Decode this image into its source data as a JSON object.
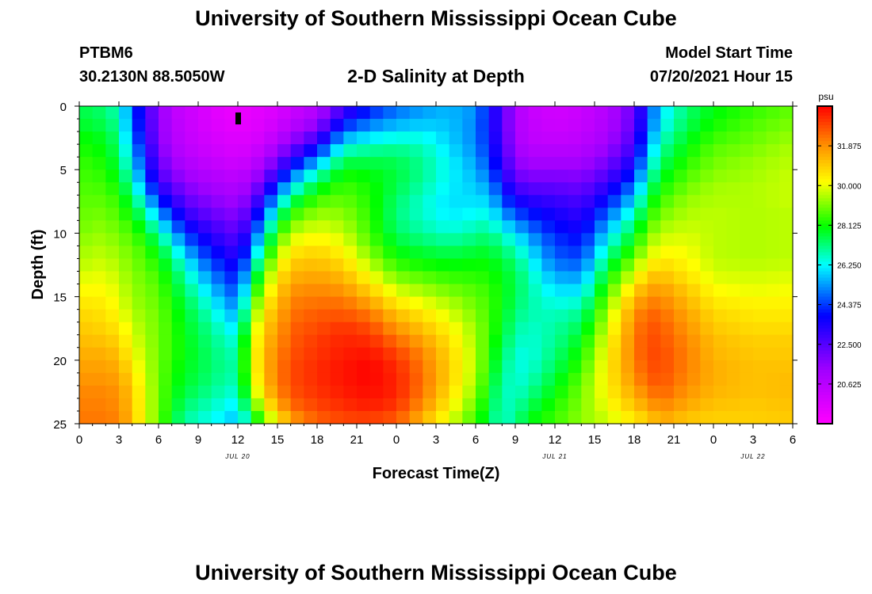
{
  "header": {
    "title_top": "University of Southern Mississippi Ocean Cube",
    "station_id": "PTBM6",
    "station_coords": "30.2130N  88.5050W",
    "plot_title": "2-D Salinity at Depth",
    "model_start_label": "Model Start Time",
    "model_start_value": "07/20/2021 Hour 15",
    "title_bottom": "University of Southern Mississippi Ocean Cube"
  },
  "chart_data": {
    "type": "heatmap",
    "title": "2-D Salinity at Depth",
    "xlabel": "Forecast Time(Z)",
    "ylabel": "Depth (ft)",
    "x_ticks": [
      "0",
      "3",
      "6",
      "9",
      "12",
      "15",
      "18",
      "21",
      "0",
      "3",
      "6",
      "9",
      "12",
      "15",
      "18",
      "21",
      "0",
      "3",
      "6"
    ],
    "x_range_hours": [
      0,
      54
    ],
    "date_labels": [
      {
        "text": "JUL 20",
        "hour": 12
      },
      {
        "text": "JUL 21",
        "hour": 36
      },
      {
        "text": "JUL 22",
        "hour": 51
      }
    ],
    "y_ticks": [
      0,
      5,
      10,
      15,
      20,
      25
    ],
    "y_range_ft": [
      0,
      25
    ],
    "x_step_hours": 1,
    "y_step_ft": 1,
    "colorbar": {
      "unit": "psu",
      "ticks": [
        "31.875",
        "30.000",
        "28.125",
        "26.250",
        "24.375",
        "22.500",
        "20.625"
      ],
      "range": [
        18.75,
        33.75
      ]
    },
    "marker": {
      "hour": 12,
      "depth_ft": 1
    },
    "profiles": [
      {
        "hour": 0,
        "s": [
          27.4,
          27.6,
          27.8,
          28.1,
          28.3,
          28.5,
          28.6,
          28.7,
          28.8,
          28.9,
          29.0,
          29.2,
          29.4,
          29.6,
          29.9,
          30.2,
          30.5,
          30.8,
          31.0,
          31.2,
          31.4,
          31.6,
          31.8,
          32.0,
          32.1,
          32.2
        ]
      },
      {
        "hour": 2,
        "s": [
          27.1,
          27.3,
          27.5,
          27.8,
          28.0,
          28.2,
          28.4,
          28.6,
          28.8,
          29.0,
          29.2,
          29.4,
          29.6,
          29.8,
          30.0,
          30.2,
          30.4,
          30.6,
          30.8,
          31.1,
          31.4,
          31.6,
          31.8,
          32.0,
          32.1,
          32.2
        ]
      },
      {
        "hour": 3,
        "s": [
          26.6,
          26.7,
          26.9,
          27.1,
          27.3,
          27.5,
          27.8,
          28.1,
          28.4,
          28.6,
          28.8,
          29.0,
          29.2,
          29.4,
          29.6,
          29.8,
          30.0,
          30.2,
          30.5,
          30.8,
          31.1,
          31.4,
          31.6,
          31.8,
          31.9,
          32.0
        ]
      },
      {
        "hour": 4,
        "s": [
          24.8,
          24.8,
          24.9,
          25.2,
          25.6,
          26.0,
          26.5,
          27.0,
          27.5,
          28.0,
          28.5,
          28.8,
          29.0,
          29.1,
          29.2,
          29.3,
          29.4,
          29.6,
          29.8,
          30.0,
          30.2,
          30.5,
          30.8,
          31.0,
          31.1,
          31.2
        ]
      },
      {
        "hour": 5,
        "s": [
          23.0,
          23.0,
          23.1,
          23.3,
          23.7,
          24.1,
          24.6,
          25.3,
          26.2,
          27.0,
          27.6,
          28.1,
          28.5,
          28.7,
          28.9,
          29.0,
          29.1,
          29.2,
          29.3,
          29.4,
          29.5,
          29.6,
          29.7,
          29.8,
          29.8,
          29.8
        ]
      },
      {
        "hour": 6,
        "s": [
          21.6,
          21.6,
          21.7,
          21.8,
          22.0,
          22.3,
          22.7,
          23.4,
          24.3,
          25.4,
          26.4,
          27.3,
          27.9,
          28.3,
          28.6,
          28.8,
          28.9,
          29.0,
          29.0,
          29.0,
          29.0,
          29.0,
          29.0,
          29.0,
          29.0,
          29.0
        ]
      },
      {
        "hour": 7,
        "s": [
          20.6,
          20.6,
          20.7,
          20.8,
          21.0,
          21.4,
          21.9,
          22.6,
          23.4,
          24.3,
          25.2,
          26.1,
          26.9,
          27.4,
          27.8,
          28.0,
          28.2,
          28.3,
          28.4,
          28.4,
          28.4,
          28.3,
          28.2,
          28.1,
          28.0,
          27.8
        ]
      },
      {
        "hour": 8,
        "s": [
          20.2,
          20.2,
          20.3,
          20.4,
          20.6,
          20.9,
          21.3,
          21.8,
          22.4,
          23.1,
          23.9,
          24.8,
          25.7,
          26.4,
          26.9,
          27.3,
          27.6,
          27.8,
          27.9,
          28.0,
          28.0,
          27.9,
          27.8,
          27.6,
          27.3,
          27.0
        ]
      },
      {
        "hour": 9,
        "s": [
          20.0,
          20.0,
          20.0,
          20.1,
          20.3,
          20.6,
          21.0,
          21.5,
          22.0,
          22.6,
          23.3,
          24.0,
          24.7,
          25.4,
          26.0,
          26.5,
          26.9,
          27.2,
          27.4,
          27.5,
          27.6,
          27.6,
          27.5,
          27.3,
          27.0,
          26.7
        ]
      },
      {
        "hour": 10,
        "s": [
          19.6,
          19.6,
          19.7,
          19.9,
          20.1,
          20.4,
          20.8,
          21.2,
          21.7,
          22.2,
          22.8,
          23.4,
          24.0,
          24.6,
          25.2,
          25.8,
          26.3,
          26.7,
          27.0,
          27.2,
          27.3,
          27.3,
          27.2,
          27.0,
          26.7,
          26.4
        ]
      },
      {
        "hour": 11,
        "s": [
          19.4,
          19.4,
          19.5,
          19.7,
          19.9,
          20.2,
          20.6,
          21.0,
          21.4,
          21.9,
          22.4,
          22.9,
          23.5,
          24.0,
          24.5,
          25.0,
          25.5,
          26.0,
          26.4,
          26.7,
          26.9,
          27.0,
          26.9,
          26.7,
          26.4,
          26.1
        ]
      },
      {
        "hour": 12,
        "s": [
          19.3,
          19.3,
          19.4,
          19.6,
          19.8,
          20.1,
          20.5,
          20.9,
          21.3,
          21.7,
          22.1,
          22.6,
          23.0,
          23.5,
          24.0,
          24.5,
          25.0,
          25.5,
          26.0,
          26.5,
          26.8,
          26.9,
          26.8,
          26.5,
          26.1,
          25.7
        ]
      },
      {
        "hour": 13,
        "s": [
          19.4,
          19.4,
          19.5,
          19.7,
          20.0,
          20.4,
          20.9,
          21.5,
          22.1,
          22.8,
          23.5,
          24.2,
          25.0,
          25.8,
          26.6,
          27.4,
          28.1,
          28.7,
          29.2,
          29.5,
          29.7,
          29.7,
          29.5,
          29.1,
          28.4,
          27.6
        ]
      },
      {
        "hour": 14,
        "s": [
          19.5,
          19.6,
          19.7,
          20.0,
          20.5,
          21.1,
          21.9,
          22.8,
          23.8,
          24.8,
          25.8,
          26.7,
          27.6,
          28.4,
          29.1,
          29.7,
          30.3,
          30.7,
          31.0,
          31.2,
          31.3,
          31.3,
          31.2,
          30.9,
          30.2,
          29.2
        ]
      },
      {
        "hour": 15,
        "s": [
          19.7,
          19.8,
          20.1,
          20.6,
          21.3,
          22.2,
          23.3,
          24.5,
          25.7,
          26.8,
          27.8,
          28.6,
          29.3,
          29.9,
          30.4,
          30.8,
          31.1,
          31.4,
          31.6,
          31.8,
          32.0,
          32.1,
          32.1,
          31.9,
          31.4,
          30.5
        ]
      },
      {
        "hour": 16,
        "s": [
          20.0,
          20.2,
          20.6,
          21.3,
          22.3,
          23.5,
          24.9,
          26.2,
          27.4,
          28.4,
          29.2,
          29.9,
          30.5,
          31.0,
          31.4,
          31.8,
          32.1,
          32.3,
          32.5,
          32.6,
          32.7,
          32.8,
          32.8,
          32.7,
          32.4,
          31.8
        ]
      },
      {
        "hour": 18,
        "s": [
          20.6,
          20.9,
          21.6,
          22.7,
          24.1,
          25.6,
          26.9,
          27.9,
          28.7,
          29.3,
          29.8,
          30.3,
          30.8,
          31.2,
          31.6,
          32.0,
          32.3,
          32.6,
          32.8,
          33.0,
          33.1,
          33.2,
          33.2,
          33.1,
          32.9,
          32.6
        ]
      },
      {
        "hour": 20,
        "s": [
          22.4,
          23.1,
          24.2,
          25.5,
          26.7,
          27.6,
          28.2,
          28.6,
          28.9,
          29.2,
          29.5,
          29.9,
          30.3,
          30.8,
          31.3,
          31.8,
          32.3,
          32.7,
          33.1,
          33.3,
          33.4,
          33.5,
          33.5,
          33.4,
          33.2,
          32.9
        ]
      },
      {
        "hour": 22,
        "s": [
          23.8,
          24.3,
          25.1,
          26.1,
          27.0,
          27.6,
          28.0,
          28.2,
          28.3,
          28.4,
          28.5,
          28.7,
          29.1,
          29.6,
          30.2,
          30.9,
          31.6,
          32.3,
          32.8,
          33.2,
          33.5,
          33.7,
          33.7,
          33.6,
          33.4,
          33.0
        ]
      },
      {
        "hour": 24,
        "s": [
          24.6,
          25.0,
          25.6,
          26.4,
          27.1,
          27.5,
          27.6,
          27.5,
          27.3,
          27.2,
          27.3,
          27.6,
          28.0,
          28.5,
          29.1,
          29.8,
          30.5,
          31.2,
          31.8,
          32.4,
          32.9,
          33.2,
          33.3,
          33.3,
          33.1,
          32.7
        ]
      },
      {
        "hour": 26,
        "s": [
          25.2,
          25.4,
          25.8,
          26.4,
          26.8,
          27.0,
          27.0,
          26.8,
          26.6,
          26.6,
          26.8,
          27.2,
          27.7,
          28.2,
          28.8,
          29.4,
          30.0,
          30.6,
          31.1,
          31.6,
          32.0,
          32.2,
          32.3,
          32.2,
          31.9,
          31.4
        ]
      },
      {
        "hour": 28,
        "s": [
          25.6,
          25.6,
          25.7,
          25.8,
          26.0,
          26.2,
          26.2,
          26.1,
          26.0,
          26.1,
          26.4,
          26.9,
          27.5,
          28.0,
          28.5,
          29.0,
          29.5,
          29.9,
          30.3,
          30.6,
          30.8,
          30.9,
          30.9,
          30.7,
          30.4,
          30.0
        ]
      },
      {
        "hour": 30,
        "s": [
          25.3,
          25.2,
          25.1,
          25.1,
          25.2,
          25.4,
          25.6,
          25.8,
          26.0,
          26.3,
          26.7,
          27.2,
          27.7,
          28.1,
          28.4,
          28.7,
          28.9,
          29.1,
          29.3,
          29.4,
          29.5,
          29.5,
          29.4,
          29.2,
          28.9,
          28.6
        ]
      },
      {
        "hour": 31,
        "s": [
          24.0,
          23.9,
          23.9,
          24.0,
          24.2,
          24.5,
          24.9,
          25.4,
          25.9,
          26.4,
          26.9,
          27.4,
          27.8,
          28.1,
          28.3,
          28.5,
          28.6,
          28.6,
          28.6,
          28.5,
          28.4,
          28.3,
          28.1,
          27.9,
          27.7,
          27.5
        ]
      },
      {
        "hour": 32,
        "s": [
          22.6,
          22.6,
          22.6,
          22.7,
          22.9,
          23.2,
          23.6,
          24.1,
          24.7,
          25.4,
          26.1,
          26.8,
          27.3,
          27.7,
          27.9,
          28.0,
          28.0,
          27.9,
          27.8,
          27.6,
          27.4,
          27.2,
          27.0,
          26.8,
          26.7,
          26.6
        ]
      },
      {
        "hour": 33,
        "s": [
          21.0,
          21.0,
          21.0,
          21.1,
          21.3,
          21.7,
          22.2,
          22.9,
          23.7,
          24.6,
          25.5,
          26.3,
          26.9,
          27.3,
          27.5,
          27.5,
          27.4,
          27.2,
          27.0,
          26.8,
          26.6,
          26.5,
          26.5,
          26.6,
          26.8,
          27.0
        ]
      },
      {
        "hour": 34,
        "s": [
          20.3,
          20.3,
          20.4,
          20.5,
          20.8,
          21.2,
          21.8,
          22.5,
          23.3,
          24.1,
          24.8,
          25.5,
          26.1,
          26.5,
          26.8,
          26.9,
          26.9,
          26.8,
          26.6,
          26.5,
          26.4,
          26.5,
          26.7,
          27.0,
          27.4,
          27.8
        ]
      },
      {
        "hour": 36,
        "s": [
          20.0,
          20.0,
          20.1,
          20.3,
          20.7,
          21.2,
          21.8,
          22.4,
          23.0,
          23.5,
          23.9,
          24.3,
          24.6,
          25.0,
          25.5,
          26.0,
          26.4,
          26.7,
          26.9,
          27.0,
          27.2,
          27.4,
          27.7,
          28.0,
          28.3,
          28.5
        ]
      },
      {
        "hour": 38,
        "s": [
          20.2,
          20.2,
          20.3,
          20.5,
          20.8,
          21.2,
          21.7,
          22.2,
          22.7,
          23.1,
          23.5,
          23.9,
          24.3,
          24.8,
          25.4,
          26.0,
          26.6,
          27.1,
          27.5,
          27.9,
          28.2,
          28.5,
          28.8,
          29.0,
          29.1,
          29.2
        ]
      },
      {
        "hour": 40,
        "s": [
          20.8,
          20.8,
          20.9,
          21.1,
          21.5,
          22.0,
          22.6,
          23.3,
          24.0,
          24.8,
          25.5,
          26.2,
          26.9,
          27.5,
          28.1,
          28.6,
          29.1,
          29.5,
          29.8,
          30.1,
          30.3,
          30.4,
          30.4,
          30.3,
          30.1,
          29.8
        ]
      },
      {
        "hour": 42,
        "s": [
          22.2,
          22.2,
          22.3,
          22.6,
          23.0,
          23.6,
          24.3,
          25.1,
          25.9,
          26.7,
          27.4,
          28.0,
          28.6,
          29.3,
          30.0,
          30.8,
          31.4,
          31.8,
          32.0,
          32.1,
          32.1,
          32.0,
          31.8,
          31.5,
          31.1,
          30.6
        ]
      },
      {
        "hour": 43,
        "s": [
          24.2,
          24.3,
          24.5,
          24.9,
          25.4,
          25.9,
          26.5,
          27.1,
          27.7,
          28.2,
          28.7,
          29.2,
          29.7,
          30.3,
          31.0,
          31.6,
          32.1,
          32.5,
          32.7,
          32.8,
          32.8,
          32.7,
          32.5,
          32.1,
          31.6,
          31.0
        ]
      },
      {
        "hour": 44,
        "s": [
          25.9,
          26.0,
          26.2,
          26.6,
          27.0,
          27.4,
          27.8,
          28.2,
          28.6,
          29.0,
          29.4,
          29.8,
          30.2,
          30.7,
          31.2,
          31.7,
          32.1,
          32.4,
          32.6,
          32.7,
          32.8,
          32.8,
          32.7,
          32.5,
          32.1,
          31.6
        ]
      },
      {
        "hour": 46,
        "s": [
          27.2,
          27.3,
          27.5,
          27.8,
          28.1,
          28.4,
          28.7,
          29.0,
          29.3,
          29.5,
          29.7,
          29.9,
          30.1,
          30.3,
          30.6,
          31.0,
          31.3,
          31.6,
          31.8,
          32.0,
          32.1,
          32.1,
          32.0,
          31.8,
          31.5,
          31.1
        ]
      },
      {
        "hour": 48,
        "s": [
          27.9,
          28.0,
          28.2,
          28.5,
          28.8,
          29.0,
          29.2,
          29.4,
          29.5,
          29.6,
          29.6,
          29.6,
          29.6,
          29.7,
          29.9,
          30.2,
          30.5,
          30.8,
          31.0,
          31.2,
          31.3,
          31.4,
          31.4,
          31.3,
          31.1,
          30.9
        ]
      },
      {
        "hour": 51,
        "s": [
          28.4,
          28.5,
          28.7,
          28.9,
          29.1,
          29.3,
          29.4,
          29.5,
          29.5,
          29.5,
          29.5,
          29.5,
          29.5,
          29.6,
          29.8,
          30.0,
          30.3,
          30.5,
          30.7,
          30.9,
          31.0,
          31.1,
          31.1,
          31.1,
          31.0,
          30.9
        ]
      },
      {
        "hour": 54,
        "s": [
          28.8,
          28.9,
          29.1,
          29.3,
          29.5,
          29.6,
          29.7,
          29.7,
          29.7,
          29.6,
          29.6,
          29.6,
          29.6,
          29.7,
          29.9,
          30.1,
          30.3,
          30.5,
          30.7,
          30.9,
          31.0,
          31.1,
          31.2,
          31.2,
          31.1,
          31.0
        ]
      }
    ]
  }
}
